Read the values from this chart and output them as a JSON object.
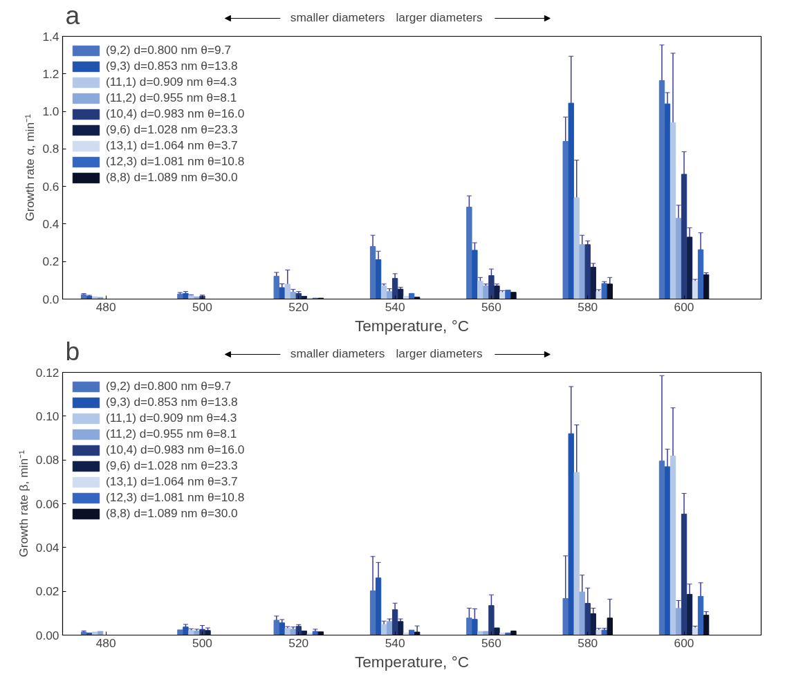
{
  "chart_data": [
    {
      "type": "bar",
      "title": "a",
      "xlabel": "Temperature, °C",
      "ylabel": "Growth rate α, min⁻¹",
      "annotations": [
        "smaller diameters",
        "larger diameters"
      ],
      "legend": "top left",
      "grid": false,
      "x": [
        480,
        500,
        520,
        540,
        560,
        580,
        600
      ],
      "xlim": [
        471,
        616
      ],
      "xticks": [
        480,
        500,
        520,
        540,
        560,
        580,
        600
      ],
      "ylim": [
        0,
        1.4
      ],
      "yticks": [
        {
          "value": 0,
          "label": "0.0"
        },
        0.2,
        0.4,
        0.6,
        0.8,
        {
          "value": 1,
          "label": "1.0"
        },
        1.2,
        1.4
      ],
      "series": [
        {
          "name": "(9,2) d=0.800 nm θ=9.7",
          "color": "#4a74c0",
          "values": [
            0.024,
            0.027,
            0.122,
            0.28,
            0.49,
            0.84,
            1.164
          ],
          "errors": [
            0.005,
            0.008,
            0.02,
            0.06,
            0.06,
            0.13,
            0.19
          ]
        },
        {
          "name": "(9,3) d=0.853 nm θ=13.8",
          "color": "#1f55b0",
          "values": [
            0.015,
            0.03,
            0.061,
            0.21,
            0.26,
            1.044,
            1.04
          ],
          "errors": [
            0.005,
            0.01,
            0.02,
            0.045,
            0.04,
            0.25,
            0.06
          ]
        },
        {
          "name": "(11,1) d=0.909 nm θ=4.3",
          "color": "#b3c8e8",
          "values": [
            0.012,
            0.018,
            0.079,
            0.07,
            0.095,
            0.54,
            0.94
          ],
          "errors": [
            null,
            0.005,
            0.076,
            0.01,
            0.02,
            0.2,
            0.37
          ]
        },
        {
          "name": "(11,2) d=0.955 nm θ=8.1",
          "color": "#8aa8dc",
          "values": [
            0.009,
            0.012,
            0.037,
            0.04,
            0.07,
            0.29,
            0.43
          ],
          "errors": [
            null,
            null,
            0.015,
            0.015,
            0.01,
            0.05,
            0.07
          ]
        },
        {
          "name": "(10,4) d=0.983 nm θ=16.0",
          "color": "#253a7a",
          "values": [
            null,
            0.016,
            0.03,
            0.11,
            0.125,
            0.29,
            0.665
          ],
          "errors": [
            null,
            0.005,
            0.01,
            0.025,
            0.035,
            0.02,
            0.12
          ]
        },
        {
          "name": "(9,6) d=1.028 nm θ=23.3",
          "color": "#0f1f4a",
          "values": [
            null,
            null,
            0.015,
            0.053,
            0.07,
            0.17,
            0.33
          ],
          "errors": [
            null,
            null,
            null,
            0.01,
            0.01,
            0.02,
            0.05
          ]
        },
        {
          "name": "(13,1) d=1.064 nm θ=3.7",
          "color": "#d0dcf0",
          "values": [
            null,
            null,
            0.005,
            0.015,
            0.035,
            0.04,
            0.095
          ],
          "errors": [
            null,
            null,
            null,
            null,
            0.01,
            0.01,
            0.01
          ]
        },
        {
          "name": "(12,3) d=1.081 nm θ=10.8",
          "color": "#3366c0",
          "values": [
            null,
            null,
            0.005,
            0.03,
            0.048,
            0.083,
            0.263
          ],
          "errors": [
            null,
            null,
            null,
            null,
            null,
            0.01,
            0.09
          ]
        },
        {
          "name": "(8,8) d=1.089 nm θ=30.0",
          "color": "#0a1028",
          "values": [
            null,
            null,
            0.005,
            0.01,
            0.036,
            0.08,
            0.13
          ],
          "errors": [
            null,
            null,
            null,
            null,
            null,
            0.035,
            0.01
          ]
        }
      ]
    },
    {
      "type": "bar",
      "title": "b",
      "xlabel": "Temperature, °C",
      "ylabel": "Growth rate β, min⁻¹",
      "annotations": [
        "smaller diameters",
        "larger diameters"
      ],
      "legend": "top left",
      "grid": false,
      "x": [
        480,
        500,
        520,
        540,
        560,
        580,
        600
      ],
      "xlim": [
        471,
        616
      ],
      "xticks": [
        480,
        500,
        520,
        540,
        560,
        580,
        600
      ],
      "ylim": [
        0,
        0.12
      ],
      "yticks": [
        {
          "value": 0,
          "label": "0.00"
        },
        {
          "value": 0.02,
          "label": "0.02"
        },
        {
          "value": 0.04,
          "label": "0.04"
        },
        {
          "value": 0.06,
          "label": "0.06"
        },
        {
          "value": 0.08,
          "label": "0.08"
        },
        {
          "value": 0.1,
          "label": "0.10"
        },
        {
          "value": 0.12,
          "label": "0.12"
        }
      ],
      "series": [
        {
          "name": "(9,2) d=0.800 nm θ=9.7",
          "color": "#4a74c0",
          "values": [
            0.0014,
            0.0024,
            0.0068,
            0.0202,
            0.0078,
            0.0167,
            0.0795
          ],
          "errors": [
            0.0005,
            null,
            0.0019,
            0.0157,
            0.0045,
            0.0195,
            0.039
          ]
        },
        {
          "name": "(9,3) d=0.853 nm θ=13.8",
          "color": "#1f55b0",
          "values": [
            0.001,
            0.0037,
            0.0056,
            0.0261,
            0.0072,
            0.092,
            0.0769
          ],
          "errors": [
            null,
            0.0012,
            0.0015,
            0.0071,
            0.0048,
            0.0215,
            0.008
          ]
        },
        {
          "name": "(11,1) d=0.909 nm θ=4.3",
          "color": "#b3c8e8",
          "values": [
            0.0014,
            0.0021,
            0.0031,
            0.0049,
            0.0017,
            0.0743,
            0.0818
          ],
          "errors": [
            null,
            0.0008,
            0.0008,
            0.0015,
            null,
            0.0217,
            0.022
          ]
        },
        {
          "name": "(11,2) d=0.955 nm θ=8.1",
          "color": "#8aa8dc",
          "values": [
            0.0017,
            0.0019,
            0.0027,
            0.0062,
            0.0017,
            0.0197,
            0.0122
          ],
          "errors": [
            null,
            0.0008,
            0.001,
            0.0012,
            null,
            0.0077,
            0.0036
          ]
        },
        {
          "name": "(10,4) d=0.983 nm θ=16.0",
          "color": "#253a7a",
          "values": [
            null,
            0.0026,
            0.004,
            0.0116,
            0.0135,
            0.0145,
            0.0553
          ],
          "errors": [
            null,
            0.0018,
            0.0008,
            0.003,
            0.0049,
            0.007,
            0.0094
          ]
        },
        {
          "name": "(9,6) d=1.028 nm θ=23.3",
          "color": "#0f1f4a",
          "values": [
            null,
            0.0021,
            0.0019,
            0.0062,
            0.0033,
            0.0098,
            0.0186
          ],
          "errors": [
            null,
            0.0012,
            null,
            0.0012,
            null,
            0.0025,
            0.0047
          ]
        },
        {
          "name": "(13,1) d=1.064 nm θ=3.7",
          "color": "#d0dcf0",
          "values": [
            null,
            null,
            0.0008,
            0.001,
            0.001,
            0.0023,
            0.0033
          ],
          "errors": [
            null,
            null,
            null,
            null,
            null,
            0.0008,
            0.0008
          ]
        },
        {
          "name": "(12,3) d=1.081 nm θ=10.8",
          "color": "#3366c0",
          "values": [
            null,
            null,
            0.0017,
            0.0023,
            0.001,
            0.0023,
            0.0177
          ],
          "errors": [
            null,
            null,
            0.001,
            null,
            null,
            0.0008,
            0.0062
          ]
        },
        {
          "name": "(8,8) d=1.089 nm θ=30.0",
          "color": "#0a1028",
          "values": [
            null,
            null,
            0.0015,
            0.0014,
            0.0019,
            0.0078,
            0.0091
          ],
          "errors": [
            null,
            null,
            null,
            0.0028,
            null,
            0.0086,
            0.0016
          ]
        }
      ]
    }
  ]
}
